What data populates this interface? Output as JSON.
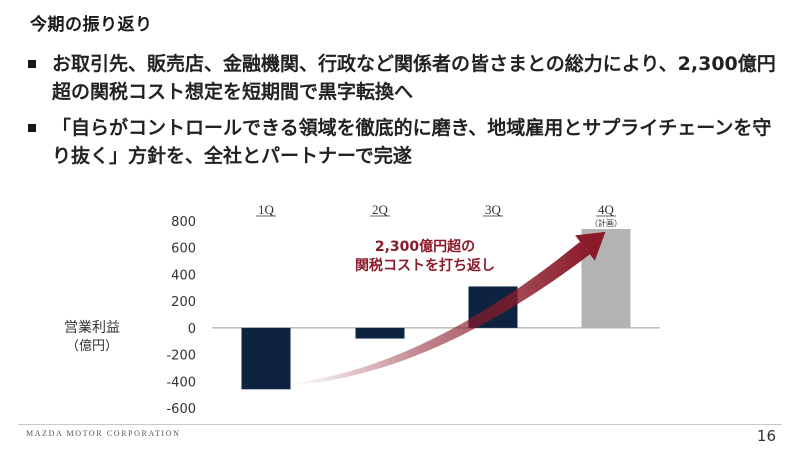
{
  "slide": {
    "title": "今期の振り返り",
    "bullets": [
      "お取引先、販売店、金融機関、行政など関係者の皆さまとの総力により、2,300億円超の関税コスト想定を短期間で黒字転換へ",
      "「自らがコントロールできる領域を徹底的に磨き、地域雇用とサプライチェーンを守り抜く」方針を、全社とパートナーで完遂"
    ],
    "footer_company": "MAZDA MOTOR CORPORATION",
    "page_number": "16"
  },
  "chart_data": {
    "type": "bar",
    "categories": [
      "1Q",
      "2Q",
      "3Q",
      "4Q"
    ],
    "category_notes": [
      "",
      "",
      "",
      "（計画）"
    ],
    "values": [
      -460,
      -80,
      310,
      740
    ],
    "planned": [
      false,
      false,
      false,
      true
    ],
    "ylabel": "営業利益",
    "yunit": "（億円）",
    "ylim": [
      -600,
      800
    ],
    "yticks": [
      800,
      600,
      400,
      200,
      0,
      -200,
      -400,
      -600
    ],
    "ytick_labels": [
      "800",
      "600",
      "400",
      "200",
      "0",
      "-200",
      "-400",
      "-600"
    ],
    "annotation": [
      "2,300億円超の",
      "関税コストを打ち返し"
    ],
    "colors": {
      "actual": "#0d2340",
      "plan": "#b3b3b3",
      "arrow": "#8b1a2a",
      "annotation": "#8b1a2a"
    },
    "grid": false
  }
}
